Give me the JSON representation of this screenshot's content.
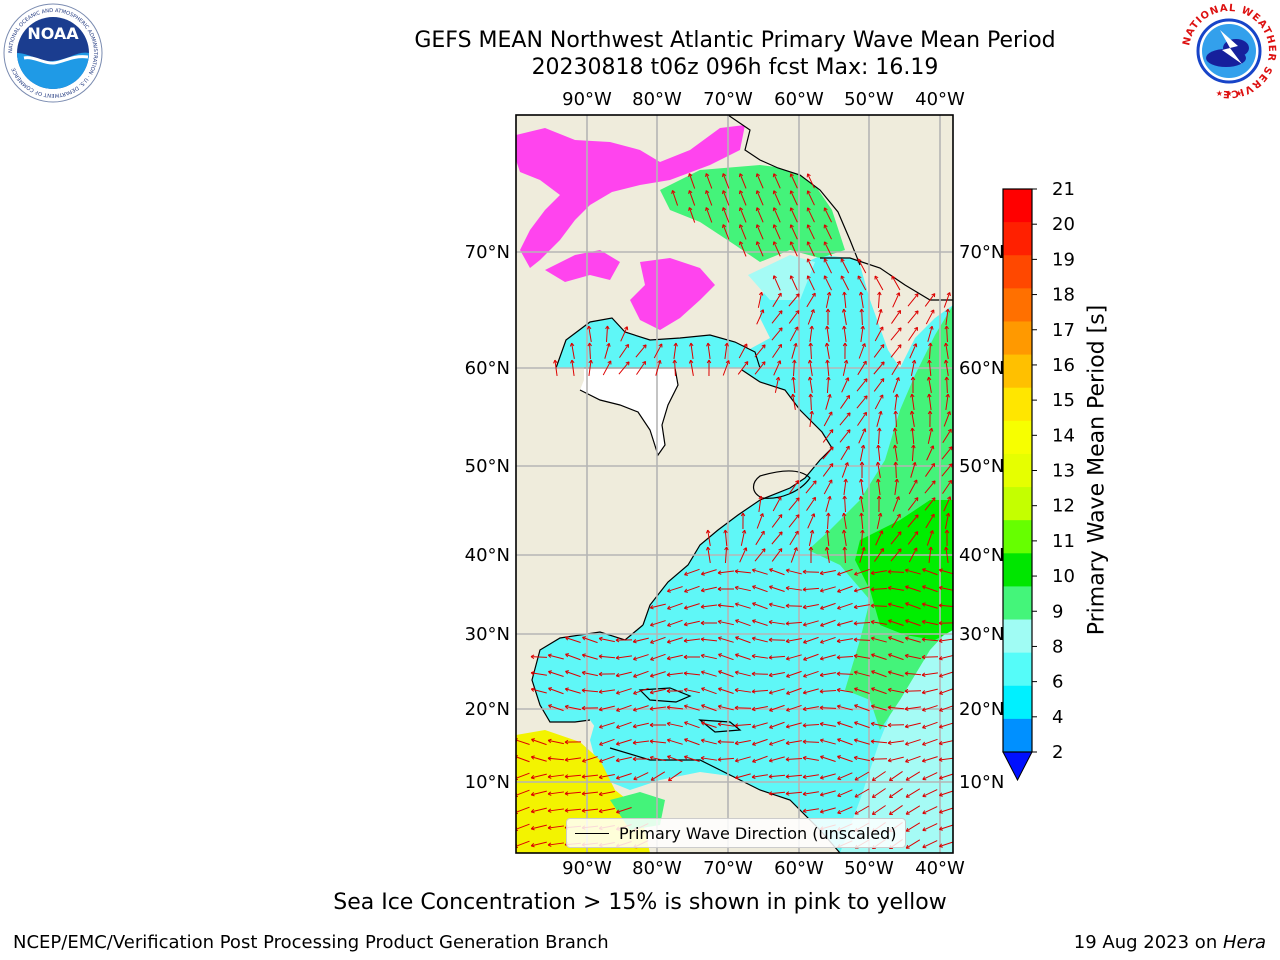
{
  "title": {
    "line1": "GEFS MEAN Northwest Atlantic Primary Wave Mean Period",
    "line2": "20230818 t06z 096h fcst   Max: 16.19"
  },
  "logos": {
    "noaa_text": "NOAA",
    "noaa_ring": "NATIONAL OCEANIC AND ATMOSPHERIC ADMINISTRATION · U.S. DEPARTMENT OF COMMERCE",
    "nws_ring": "NATIONAL WEATHER SERVICE"
  },
  "map": {
    "lon_labels": [
      "90°W",
      "80°W",
      "70°W",
      "60°W",
      "50°W",
      "40°W"
    ],
    "lat_labels": [
      "70°N",
      "60°N",
      "50°N",
      "40°N",
      "30°N",
      "20°N",
      "10°N"
    ],
    "legend_label": "Primary Wave Direction (unscaled)",
    "colors": {
      "land": "#efecdc",
      "water_light_cyan": "#5ff7f7",
      "water_pale_cyan": "#a5fbf5",
      "water_green": "#44f37a",
      "water_bright_green": "#00ee00",
      "water_yellow": "#f3f300",
      "ice_pink": "#ff44ee",
      "arrows": "#dd0000"
    }
  },
  "colorbar": {
    "label": "Primary Wave Mean Period [s]",
    "ticks": [
      "21",
      "20",
      "19",
      "18",
      "17",
      "16",
      "15",
      "14",
      "13",
      "12",
      "11",
      "10",
      "9",
      "8",
      "6",
      "4",
      "2"
    ],
    "colors": [
      "#ff0000",
      "#ff2000",
      "#ff4800",
      "#ff7000",
      "#ff9900",
      "#ffc000",
      "#ffe600",
      "#f7ff00",
      "#e6ff00",
      "#c4ff00",
      "#66ff00",
      "#00e600",
      "#44f57a",
      "#a0fcf4",
      "#55fcf9",
      "#00f0ff",
      "#0090ff",
      "#0010ff"
    ]
  },
  "note": "Sea Ice Concentration > 15% is shown in pink to yellow",
  "footer": {
    "left": "NCEP/EMC/Verification Post Processing Product Generation Branch",
    "date": "19 Aug 2023 on ",
    "host": "Hera"
  }
}
